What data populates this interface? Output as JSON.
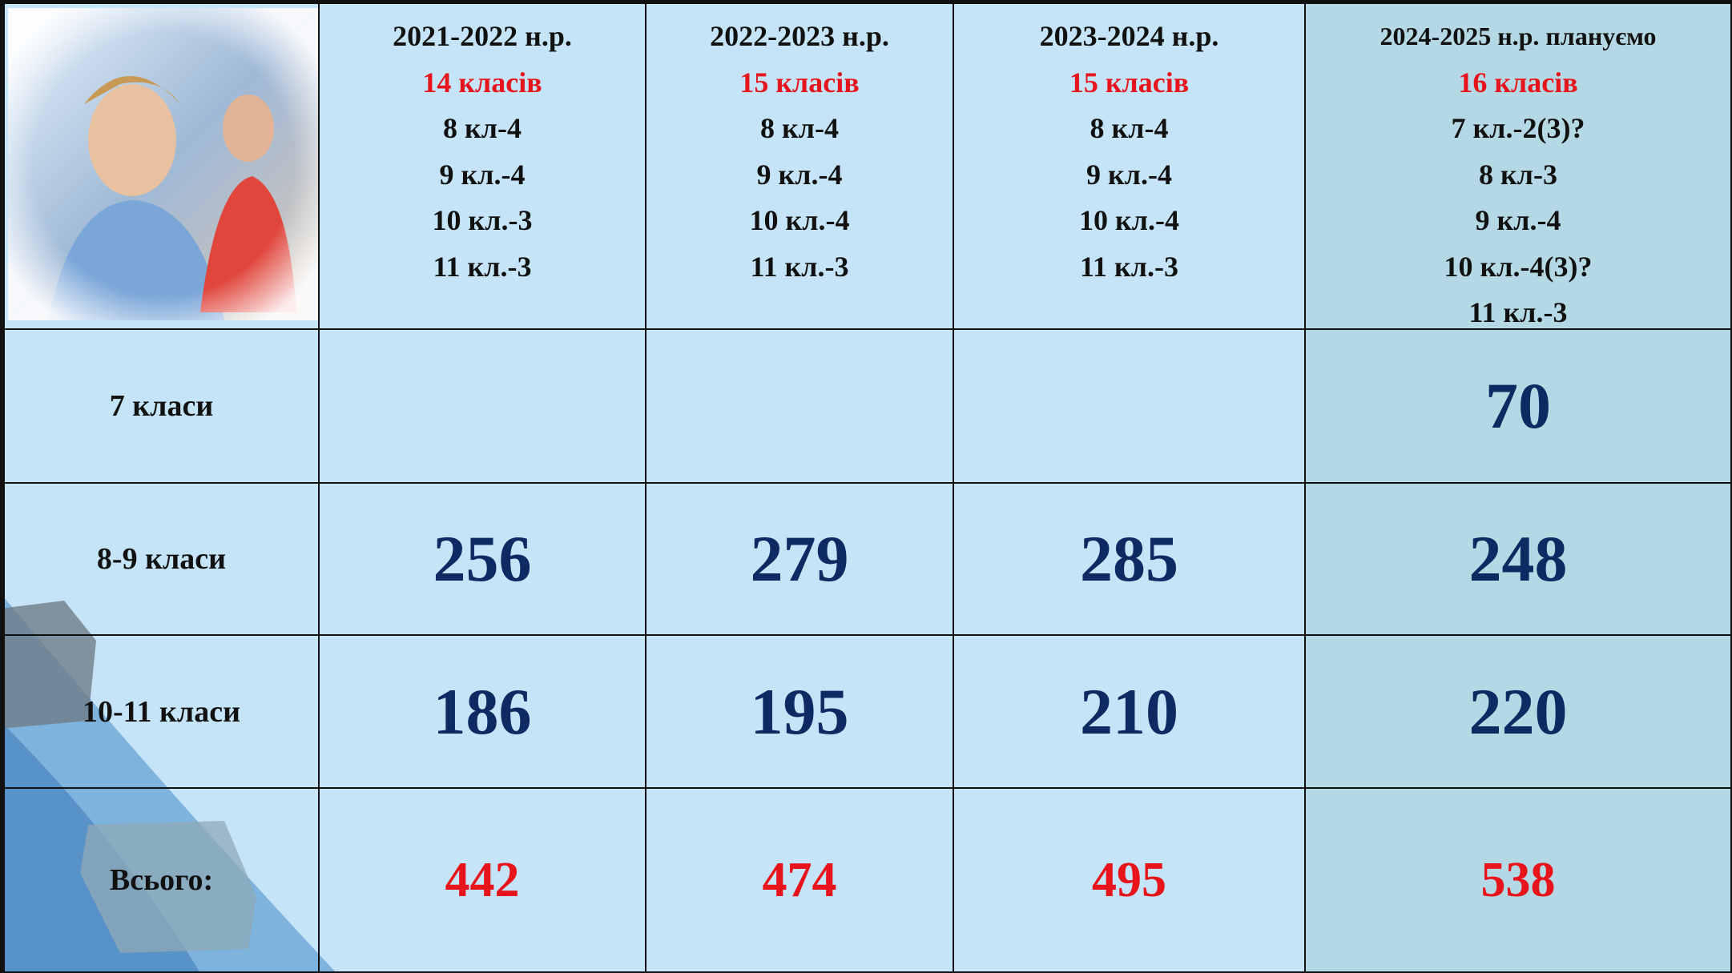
{
  "table": {
    "columns": [
      {
        "title": "2021-2022 н.р.",
        "classes": "14 класів",
        "lines": [
          "8 кл-4",
          "9 кл.-4",
          "10 кл.-3",
          "11 кл.-3"
        ]
      },
      {
        "title": "2022-2023 н.р.",
        "classes": "15 класів",
        "lines": [
          "8 кл-4",
          "9 кл.-4",
          "10 кл.-4",
          "11 кл.-3"
        ]
      },
      {
        "title": "2023-2024 н.р.",
        "classes": "15 класів",
        "lines": [
          "8 кл-4",
          "9 кл.-4",
          "10 кл.-4",
          "11 кл.-3"
        ]
      },
      {
        "title": "2024-2025 н.р. плануємо",
        "classes": "16 класів",
        "lines": [
          "7 кл.-2(3)?",
          "8 кл-3",
          "9 кл.-4",
          "10 кл.-4(3)?",
          "11 кл.-3"
        ]
      }
    ],
    "rows": [
      {
        "label": "7 класи",
        "cells": [
          null,
          null,
          null,
          70
        ]
      },
      {
        "label": "8-9 класи",
        "cells": [
          256,
          279,
          285,
          248
        ]
      },
      {
        "label": "10-11 класи",
        "cells": [
          186,
          195,
          210,
          220
        ]
      },
      {
        "label": "Всього:",
        "cells": [
          442,
          474,
          495,
          538
        ]
      }
    ]
  }
}
